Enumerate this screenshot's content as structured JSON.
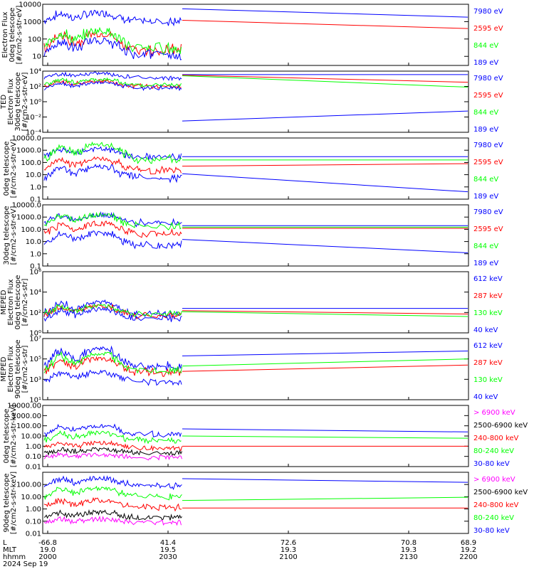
{
  "colors": {
    "blue": "#0000ff",
    "red": "#ff0000",
    "green": "#00ff00",
    "black": "#000000",
    "magenta": "#ff00ff",
    "axis": "#000000"
  },
  "chart_data": [
    {
      "type": "line",
      "log": true,
      "ylabel": [
        "Electron Flux",
        "0deg telescope",
        "[#/cm2-s-str-eV]"
      ],
      "yticks": [
        {
          "v": 10,
          "label": "10"
        },
        {
          "v": 100,
          "label": "100"
        },
        {
          "v": 1000,
          "label": "1000"
        },
        {
          "v": 10000,
          "label": "10000"
        }
      ],
      "ylim": [
        3,
        10000
      ],
      "series": [
        {
          "name": "7980 eV",
          "color": "blue",
          "quiet": [
            500,
            3000
          ],
          "seg": [
            5500,
            1800
          ]
        },
        {
          "name": "2595 eV",
          "color": "red",
          "quiet": [
            5,
            200
          ],
          "seg": [
            1200,
            400
          ]
        },
        {
          "name": "844 eV",
          "color": "green",
          "quiet": [
            5,
            300
          ],
          "seg": null
        },
        {
          "name": "189 eV",
          "color": "blue",
          "quiet": [
            3,
            80
          ],
          "seg": null
        }
      ]
    },
    {
      "type": "line",
      "log": true,
      "ylabel": [
        "TED",
        "Electron Flux",
        "30deg telescope",
        "[#/cm2-s-str-eV]"
      ],
      "yticks": [
        {
          "v": 0.0001,
          "label": "10⁻⁴"
        },
        {
          "v": 0.01,
          "label": "10⁻²"
        },
        {
          "v": 1,
          "label": "10⁰"
        },
        {
          "v": 100,
          "label": "10²"
        },
        {
          "v": 10000,
          "label": "10⁴"
        }
      ],
      "ylim": [
        0.0001,
        10000
      ],
      "series": [
        {
          "name": "7980 eV",
          "color": "blue",
          "quiet": [
            500,
            5000
          ],
          "seg": [
            3500,
            3500
          ]
        },
        {
          "name": "2595 eV",
          "color": "red",
          "quiet": [
            30,
            500
          ],
          "seg": [
            3000,
            350
          ]
        },
        {
          "name": "844 eV",
          "color": "green",
          "quiet": [
            50,
            800
          ],
          "seg": [
            2500,
            80
          ]
        },
        {
          "name": "189 eV",
          "color": "blue",
          "quiet": [
            20,
            300
          ],
          "seg": [
            0.003,
            0.06
          ]
        }
      ]
    },
    {
      "type": "line",
      "log": true,
      "ylabel": [
        "0deg telescope",
        "[#/cm2-s-str-eV]"
      ],
      "yticks": [
        {
          "v": 0.1,
          "label": "0.1"
        },
        {
          "v": 1,
          "label": "1.0"
        },
        {
          "v": 10,
          "label": "10.0"
        },
        {
          "v": 100,
          "label": "100.0"
        },
        {
          "v": 1000,
          "label": "1000.0"
        },
        {
          "v": 10000,
          "label": "10000.0"
        }
      ],
      "ylim": [
        0.1,
        10000
      ],
      "series": [
        {
          "name": "7980 eV",
          "color": "blue",
          "quiet": [
            100,
            1200
          ],
          "seg": [
            300,
            300
          ]
        },
        {
          "name": "2595 eV",
          "color": "red",
          "quiet": [
            5,
            200
          ],
          "seg": [
            50,
            80
          ]
        },
        {
          "name": "844 eV",
          "color": "green",
          "quiet": [
            20,
            2800
          ],
          "seg": [
            160,
            160
          ]
        },
        {
          "name": "189 eV",
          "color": "blue",
          "quiet": [
            1,
            50
          ],
          "seg": [
            12,
            0.4
          ]
        }
      ]
    },
    {
      "type": "line",
      "log": true,
      "ylabel": [
        "30deg telescope",
        "[#/cm2-s-str-eV]"
      ],
      "yticks": [
        {
          "v": 0.1,
          "label": "0.1"
        },
        {
          "v": 1,
          "label": "1.0"
        },
        {
          "v": 10,
          "label": "10.0"
        },
        {
          "v": 100,
          "label": "100.0"
        },
        {
          "v": 1000,
          "label": "1000.0"
        },
        {
          "v": 10000,
          "label": "10000.0"
        }
      ],
      "ylim": [
        0.1,
        10000
      ],
      "series": [
        {
          "name": "7980 eV",
          "color": "blue",
          "quiet": [
            100,
            1500
          ],
          "seg": [
            200,
            200
          ]
        },
        {
          "name": "2595 eV",
          "color": "red",
          "quiet": [
            10,
            300
          ],
          "seg": [
            120,
            120
          ]
        },
        {
          "name": "844 eV",
          "color": "green",
          "quiet": [
            50,
            1500
          ],
          "seg": [
            150,
            150
          ]
        },
        {
          "name": "189 eV",
          "color": "blue",
          "quiet": [
            1,
            50
          ],
          "seg": [
            15,
            1.2
          ]
        }
      ]
    },
    {
      "type": "line",
      "log": true,
      "ylabel": [
        "MEPED",
        "Electron Flux",
        "0deg telescope",
        "[#/cm2-s-str]"
      ],
      "yticks": [
        {
          "v": 1,
          "label": "10⁰"
        },
        {
          "v": 100,
          "label": "10²"
        },
        {
          "v": 10000,
          "label": "10⁴"
        },
        {
          "v": 1000000,
          "label": "10⁶"
        }
      ],
      "ylim": [
        1,
        1000000
      ],
      "series": [
        {
          "name": "612 keV",
          "color": "blue",
          "quiet": [
            10,
            1000
          ],
          "seg": [
            250,
            250
          ]
        },
        {
          "name": "287 keV",
          "color": "red",
          "quiet": [
            10,
            400
          ],
          "seg": [
            150,
            70
          ]
        },
        {
          "name": "130 keV",
          "color": "green",
          "quiet": [
            20,
            400
          ],
          "seg": [
            120,
            40
          ]
        },
        {
          "name": "40 keV",
          "color": "blue",
          "quiet": [
            5,
            200
          ],
          "seg": null
        }
      ]
    },
    {
      "type": "line",
      "log": true,
      "ylabel": [
        "MEPED",
        "Electron Flux",
        "90deg telescope",
        "[#/cm2-s-str]"
      ],
      "yticks": [
        {
          "v": 10,
          "label": "10¹"
        },
        {
          "v": 1000,
          "label": "10³"
        },
        {
          "v": 100000,
          "label": "10⁵"
        },
        {
          "v": 10000000,
          "label": "10⁷"
        }
      ],
      "ylim": [
        10,
        10000000
      ],
      "series": [
        {
          "name": "612 keV",
          "color": "blue",
          "quiet": [
            1000,
            1000000
          ],
          "seg": [
            200000,
            600000
          ]
        },
        {
          "name": "287 keV",
          "color": "red",
          "quiet": [
            500,
            100000
          ],
          "seg": [
            6000,
            25000
          ]
        },
        {
          "name": "130 keV",
          "color": "green",
          "quiet": [
            500,
            300000
          ],
          "seg": [
            20000,
            100000
          ]
        },
        {
          "name": "40 keV",
          "color": "blue",
          "quiet": [
            100,
            5000
          ],
          "seg": null
        }
      ]
    },
    {
      "type": "line",
      "log": true,
      "ylabel": [
        "0deg telescope",
        "[#/cm2-s-str-keV]"
      ],
      "yticks": [
        {
          "v": 0.01,
          "label": "0.01"
        },
        {
          "v": 0.1,
          "label": "0.10"
        },
        {
          "v": 1,
          "label": "1.00"
        },
        {
          "v": 10,
          "label": "10.00"
        },
        {
          "v": 100,
          "label": "100.00"
        },
        {
          "v": 1000,
          "label": "1000.00"
        },
        {
          "v": 10000,
          "label": "10000.00"
        }
      ],
      "ylim": [
        0.01,
        10000
      ],
      "series": [
        {
          "name": "> 6900 keV",
          "color": "magenta",
          "quiet": [
            0.05,
            0.15
          ],
          "seg": null
        },
        {
          "name": "2500-6900 keV",
          "color": "black",
          "quiet": [
            0.1,
            0.5
          ],
          "seg": null
        },
        {
          "name": "240-800 keV",
          "color": "red",
          "quiet": [
            0.3,
            2
          ],
          "seg": [
            1,
            1
          ]
        },
        {
          "name": "80-240 keV",
          "color": "green",
          "quiet": [
            1,
            20
          ],
          "seg": [
            10,
            6
          ]
        },
        {
          "name": "30-80 keV",
          "color": "blue",
          "quiet": [
            3,
            100
          ],
          "seg": [
            50,
            25
          ]
        }
      ]
    },
    {
      "type": "line",
      "log": true,
      "ylabel": [
        "90deg telescope",
        "[#/cm2-s-str-keV]"
      ],
      "yticks": [
        {
          "v": 0.01,
          "label": "0.01"
        },
        {
          "v": 0.1,
          "label": "0.10"
        },
        {
          "v": 1,
          "label": "1.00"
        },
        {
          "v": 10,
          "label": "10.00"
        },
        {
          "v": 100,
          "label": "100.00"
        }
      ],
      "ylim": [
        0.01,
        1000
      ],
      "series": [
        {
          "name": "> 6900 keV",
          "color": "magenta",
          "quiet": [
            0.05,
            0.15
          ],
          "seg": null
        },
        {
          "name": "2500-6900 keV",
          "color": "black",
          "quiet": [
            0.1,
            0.5
          ],
          "seg": null
        },
        {
          "name": "240-800 keV",
          "color": "red",
          "quiet": [
            0.5,
            5
          ],
          "seg": [
            1.2,
            1.2
          ]
        },
        {
          "name": "80-240 keV",
          "color": "green",
          "quiet": [
            3,
            50
          ],
          "seg": [
            5,
            9
          ]
        },
        {
          "name": "30-80 keV",
          "color": "blue",
          "quiet": [
            30,
            300
          ],
          "seg": [
            300,
            150
          ]
        }
      ]
    }
  ],
  "xaxis": {
    "rows": [
      {
        "label": "L",
        "values": [
          "-66.8",
          "41.4",
          "72.6",
          "70.8",
          "68.9"
        ]
      },
      {
        "label": "MLT",
        "values": [
          "19.0",
          "19.5",
          "19.3",
          "19.3",
          "19.2"
        ]
      },
      {
        "label": "hhmm",
        "values": [
          "2000",
          "2030",
          "2100",
          "2130",
          "2200"
        ]
      }
    ],
    "date": "2024 Sep 19"
  }
}
